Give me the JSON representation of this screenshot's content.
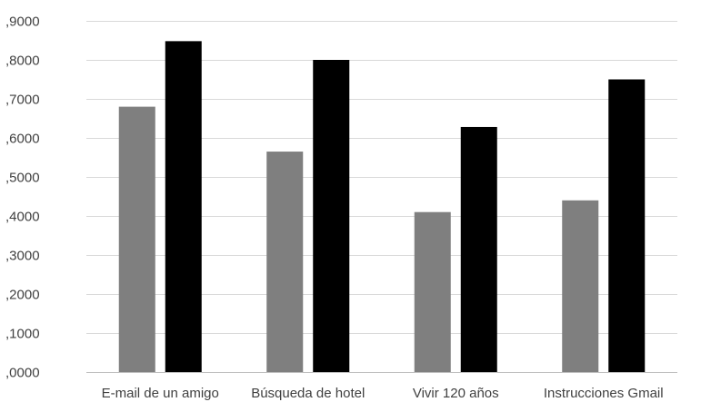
{
  "chart_data": {
    "type": "bar",
    "categories": [
      "E-mail de un amigo",
      "Búsqueda de hotel",
      "Vivir 120 años",
      "Instrucciones Gmail"
    ],
    "series": [
      {
        "color": "#7f7f7f",
        "values": [
          0.68,
          0.565,
          0.41,
          0.44
        ]
      },
      {
        "color": "#000000",
        "values": [
          0.848,
          0.8,
          0.628,
          0.75
        ]
      }
    ],
    "ylim": [
      0,
      0.9
    ],
    "yticks": [
      0,
      0.1,
      0.2,
      0.3,
      0.4,
      0.5,
      0.6,
      0.7,
      0.8,
      0.9
    ],
    "ytick_labels": [
      ",0000",
      ",1000",
      ",2000",
      ",3000",
      ",4000",
      ",5000",
      ",6000",
      ",7000",
      ",8000",
      ",9000"
    ],
    "grid": true,
    "legend": "none",
    "title": "",
    "xlabel": "",
    "ylabel": ""
  }
}
